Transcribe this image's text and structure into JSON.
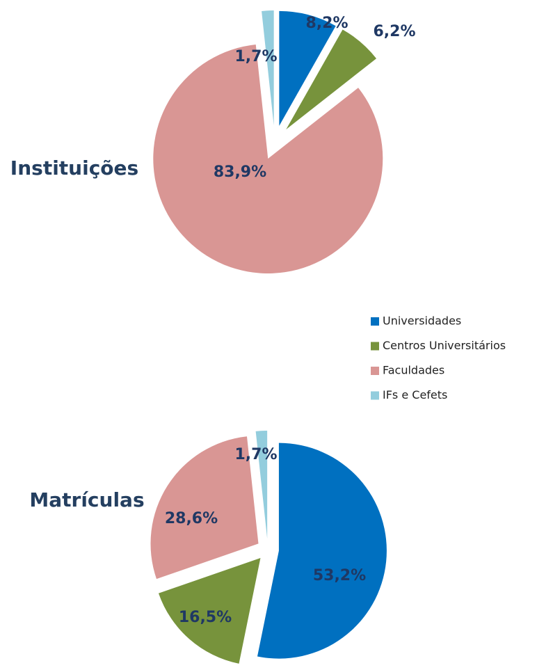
{
  "legend": {
    "categories": [
      "Universidades",
      "Centros Universitários",
      "Faculdades",
      "IFs e Cefets"
    ],
    "colors": [
      "#0070c0",
      "#77933c",
      "#d99694",
      "#93cddd"
    ]
  },
  "chart_data": [
    {
      "type": "pie",
      "title": "Instituições",
      "values": [
        8.2,
        6.2,
        83.9,
        1.7
      ],
      "value_labels": [
        "8,2%",
        "6,2%",
        "83,9%",
        "1,7%"
      ]
    },
    {
      "type": "pie",
      "title": "Matrículas",
      "values": [
        53.2,
        16.5,
        28.6,
        1.7
      ],
      "value_labels": [
        "53,2%",
        "16,5%",
        "28,6%",
        "1,7%"
      ]
    }
  ]
}
